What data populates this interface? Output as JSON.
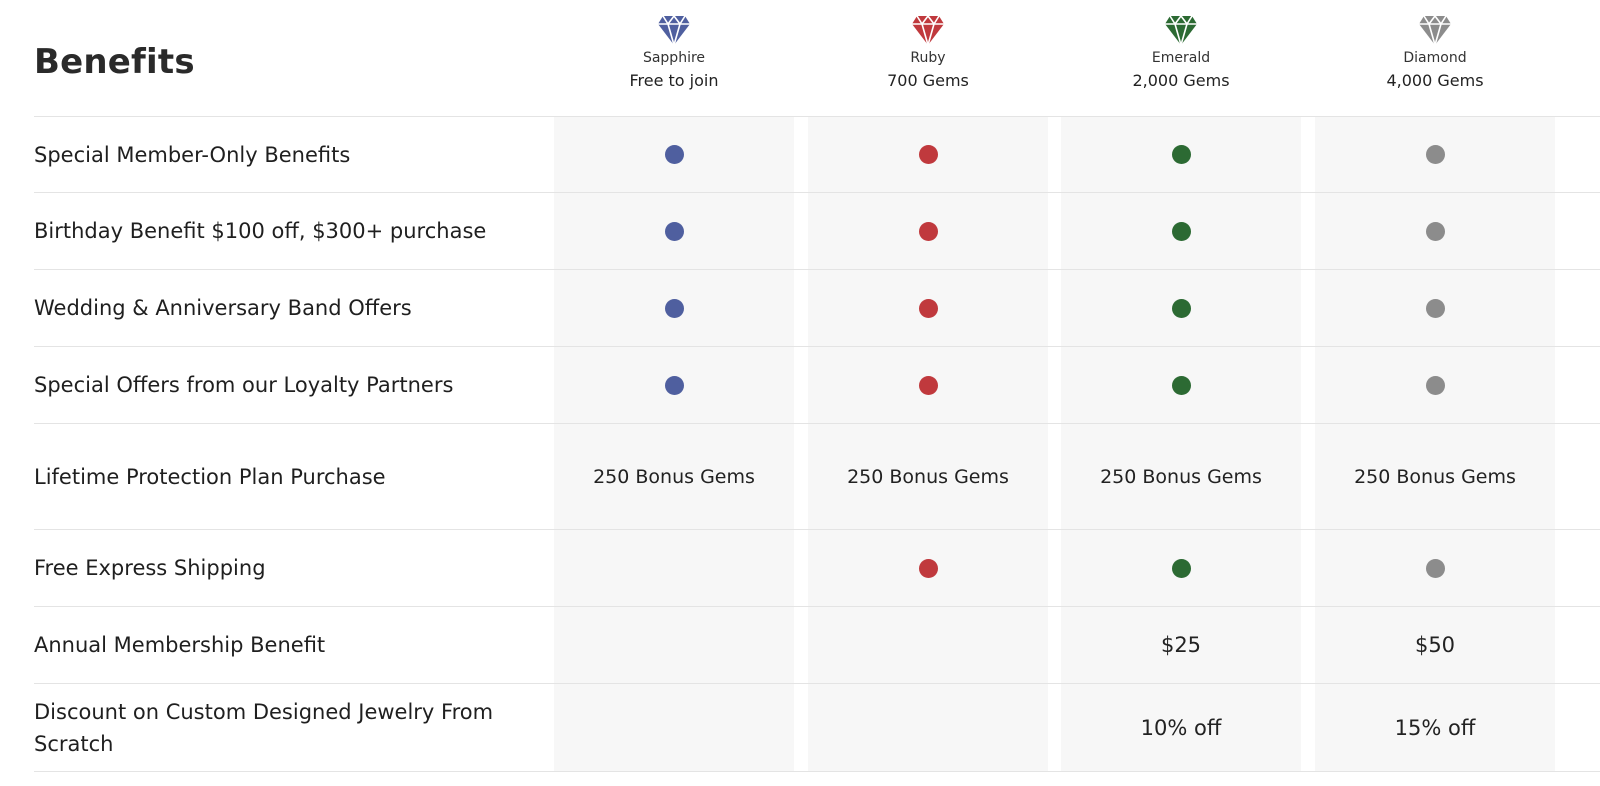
{
  "title": "Benefits",
  "colors": {
    "sapphire": "#4f5f9f",
    "ruby": "#c0393d",
    "emerald": "#2c6a33",
    "diamond": "#8c8c8c"
  },
  "tiers": [
    {
      "id": "sapphire",
      "name": "Sapphire",
      "cost": "Free to join",
      "icon": "sapphire-gem-icon"
    },
    {
      "id": "ruby",
      "name": "Ruby",
      "cost": "700 Gems",
      "icon": "ruby-gem-icon"
    },
    {
      "id": "emerald",
      "name": "Emerald",
      "cost": "2,000 Gems",
      "icon": "emerald-gem-icon"
    },
    {
      "id": "diamond",
      "name": "Diamond",
      "cost": "4,000 Gems",
      "icon": "diamond-gem-icon"
    }
  ],
  "rows": [
    {
      "label": "Special Member-Only Benefits",
      "values": [
        "dot",
        "dot",
        "dot",
        "dot"
      ]
    },
    {
      "label": "Birthday Benefit $100 off, $300+ purchase",
      "values": [
        "dot",
        "dot",
        "dot",
        "dot"
      ]
    },
    {
      "label": "Wedding & Anniversary Band Offers",
      "values": [
        "dot",
        "dot",
        "dot",
        "dot"
      ]
    },
    {
      "label": "Special Offers from our Loyalty Partners",
      "values": [
        "dot",
        "dot",
        "dot",
        "dot"
      ]
    },
    {
      "label": "Lifetime Protection Plan Purchase",
      "values": [
        "250 Bonus Gems",
        "250 Bonus Gems",
        "250 Bonus Gems",
        "250 Bonus Gems"
      ]
    },
    {
      "label": "Free Express Shipping",
      "values": [
        "",
        "dot",
        "dot",
        "dot"
      ]
    },
    {
      "label": "Annual Membership Benefit",
      "values": [
        "",
        "",
        "$25",
        "$50"
      ]
    },
    {
      "label": "Discount on Custom Designed Jewelry From Scratch",
      "values": [
        "",
        "",
        "10% off",
        "15% off"
      ]
    }
  ]
}
